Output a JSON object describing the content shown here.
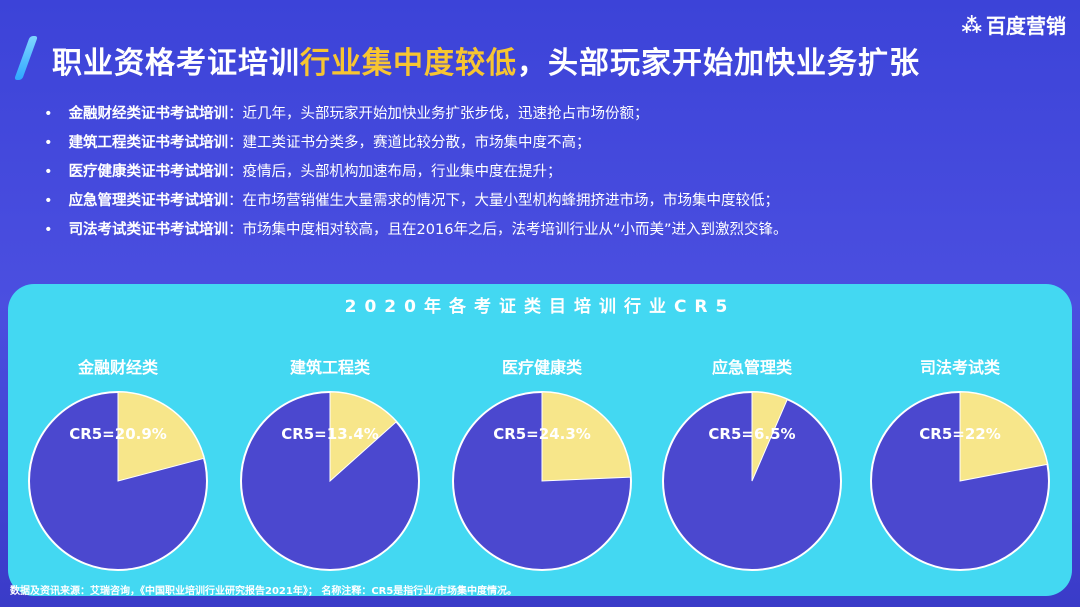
{
  "logo": {
    "text": "百度营销",
    "icon": "baidu-paw-icon"
  },
  "header": {
    "title_part1": "职业资格考证培训",
    "title_highlight": "行业集中度较低",
    "title_part2": "，头部玩家开始加快业务扩张"
  },
  "bullets": [
    {
      "label": "金融财经类证书考试培训",
      "text": "：近几年，头部玩家开始加快业务扩张步伐，迅速抢占市场份额；"
    },
    {
      "label": "建筑工程类证书考试培训",
      "text": "：建工类证书分类多，赛道比较分散，市场集中度不高；"
    },
    {
      "label": "医疗健康类证书考试培训",
      "text": "：疫情后，头部机构加速布局，行业集中度在提升；"
    },
    {
      "label": "应急管理类证书考试培训",
      "text": "：在市场营销催生大量需求的情况下，大量小型机构蜂拥挤进市场，市场集中度较低；"
    },
    {
      "label": "司法考试类证书考试培训",
      "text": "：市场集中度相对较高，且在2016年之后，法考培训行业从“小而美”进入到激烈交锋。"
    }
  ],
  "chart_data": {
    "type": "pie",
    "title": "2020年各考证类目培训行业CR5",
    "categories": [
      "金融财经类",
      "建筑工程类",
      "医疗健康类",
      "应急管理类",
      "司法考试类"
    ],
    "values": [
      20.9,
      13.4,
      24.3,
      6.5,
      22
    ],
    "data_labels": [
      "CR5=20.9%",
      "CR5=13.4%",
      "CR5=24.3%",
      "CR5=6.5%",
      "CR5=22%"
    ],
    "colors": {
      "cr5": "#f7e68a",
      "rest": "#4b48cf"
    }
  },
  "footer": {
    "source": "数据及资讯来源：艾瑞咨询，《中国职业培训行业研究报告2021年》；  名称注释：CR5是指行业/市场集中度情况。"
  }
}
